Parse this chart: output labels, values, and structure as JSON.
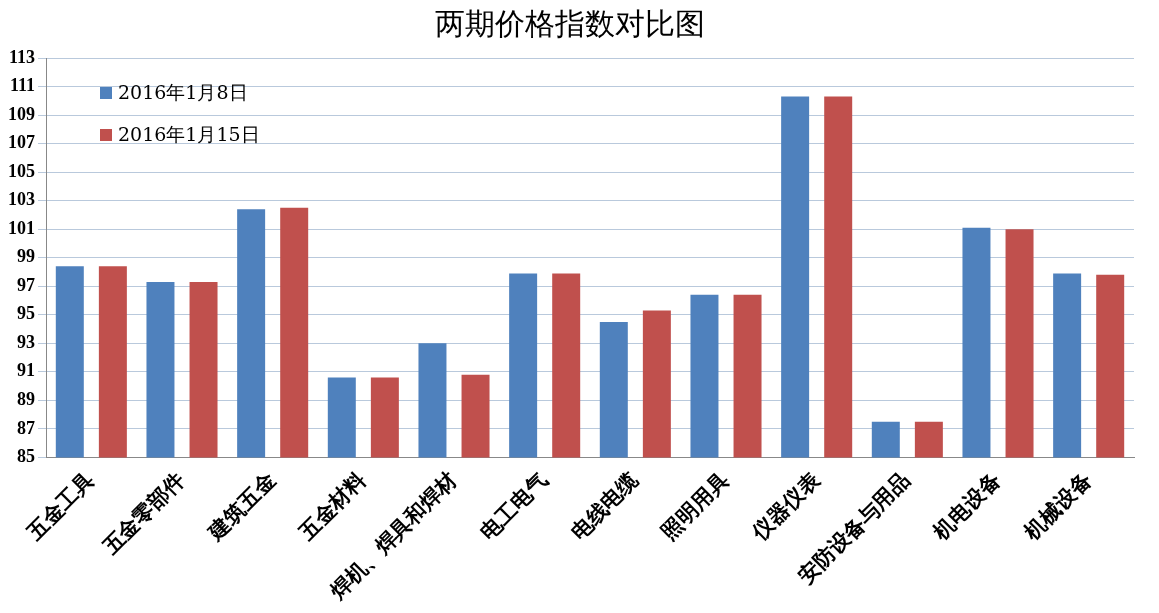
{
  "chart_data": {
    "type": "bar",
    "title": "两期价格指数对比图",
    "categories": [
      "五金工具",
      "五金零部件",
      "建筑五金",
      "五金材料",
      "焊机、焊具和焊材",
      "电工电气",
      "电线电缆",
      "照明用具",
      "仪器仪表",
      "安防设备与用品",
      "机电设备",
      "机械设备"
    ],
    "series": [
      {
        "name": "2016年1月8日",
        "color": "#4f81bd",
        "values": [
          98.4,
          97.3,
          102.4,
          90.6,
          93.0,
          97.9,
          94.5,
          96.4,
          110.3,
          87.5,
          101.1,
          97.9
        ]
      },
      {
        "name": "2016年1月15日",
        "color": "#c0504d",
        "values": [
          98.4,
          97.3,
          102.5,
          90.6,
          90.8,
          97.9,
          95.3,
          96.4,
          110.3,
          87.5,
          101.0,
          97.8
        ]
      }
    ],
    "ylim": [
      85,
      113
    ],
    "yticks": [
      85,
      87,
      89,
      91,
      93,
      95,
      97,
      99,
      101,
      103,
      105,
      107,
      109,
      111,
      113
    ],
    "grid": "y",
    "legend": "top left"
  }
}
